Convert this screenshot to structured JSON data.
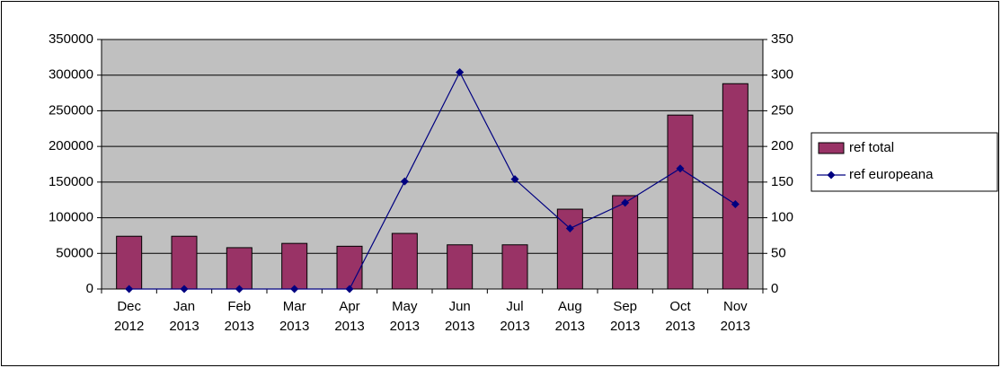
{
  "chart_data": {
    "type": "bar",
    "categories": [
      "Dec 2012",
      "Jan 2013",
      "Feb 2013",
      "Mar 2013",
      "Apr 2013",
      "May 2013",
      "Jun 2013",
      "Jul 2013",
      "Aug 2013",
      "Sep 2013",
      "Oct 2013",
      "Nov 2013"
    ],
    "series": [
      {
        "name": "ref total",
        "type": "bar",
        "color": "#993366",
        "values": [
          74000,
          74000,
          58000,
          64000,
          60000,
          78000,
          62000,
          62000,
          112000,
          131000,
          244000,
          288000
        ]
      },
      {
        "name": "ref europeana",
        "type": "line",
        "axis": "y2",
        "color": "#000080",
        "values": [
          0,
          0,
          0,
          0,
          0,
          151,
          304,
          154,
          85,
          121,
          169,
          119
        ]
      }
    ],
    "ylim": [
      0,
      350000
    ],
    "yticks": [
      0,
      50000,
      100000,
      150000,
      200000,
      250000,
      300000,
      350000
    ],
    "y2lim": [
      0,
      350
    ],
    "y2ticks": [
      0,
      50,
      100,
      150,
      200,
      250,
      300,
      350
    ],
    "grid": true,
    "plot_background": "#c0c0c0",
    "legend": "right"
  }
}
